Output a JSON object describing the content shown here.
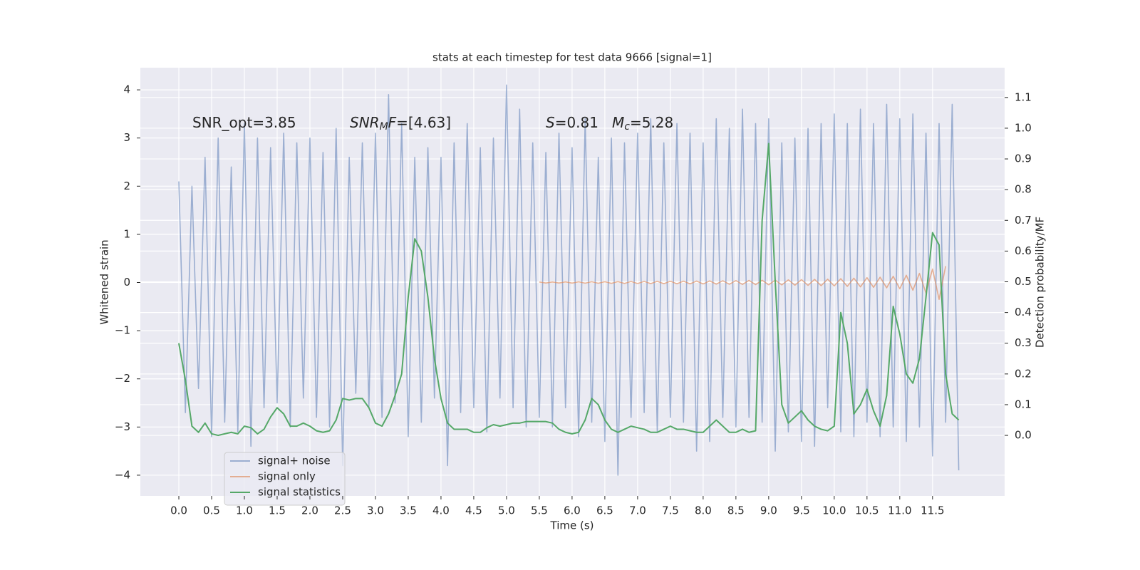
{
  "chart_data": {
    "type": "line",
    "title": "stats at each timestep for test data 9666 [signal=1]",
    "x_label": "Time (s)",
    "y_label": "Whitened strain",
    "y2_label": "Detection probability/MF",
    "annotations": [
      [
        {
          "text": "SNR_opt=3.85",
          "style": "normal"
        }
      ],
      [
        {
          "text": "SNR",
          "style": "italic"
        },
        {
          "text": "M",
          "style": "italic-sub"
        },
        {
          "text": "F",
          "style": "italic"
        },
        {
          "text": "=[4.63]",
          "style": "normal"
        }
      ],
      [
        {
          "text": "S",
          "style": "italic"
        },
        {
          "text": "=0.81",
          "style": "normal"
        }
      ],
      [
        {
          "text": "M",
          "style": "italic"
        },
        {
          "text": "c",
          "style": "italic-sub"
        },
        {
          "text": "=5.28",
          "style": "normal"
        }
      ]
    ],
    "xlim": [
      -0.587,
      12.6
    ],
    "ylim": [
      -4.43,
      4.46
    ],
    "y2lim": [
      -0.197,
      1.197
    ],
    "xticks": [
      {
        "value": 0,
        "label": "0.0"
      },
      0.5,
      {
        "value": 1,
        "label": "1.0"
      },
      1.5,
      {
        "value": 2,
        "label": "2.0"
      },
      2.5,
      {
        "value": 3,
        "label": "3.0"
      },
      3.5,
      {
        "value": 4,
        "label": "4.0"
      },
      4.5,
      {
        "value": 5,
        "label": "5.0"
      },
      5.5,
      {
        "value": 6,
        "label": "6.0"
      },
      6.5,
      {
        "value": 7,
        "label": "7.0"
      },
      7.5,
      {
        "value": 8,
        "label": "8.0"
      },
      8.5,
      {
        "value": 9,
        "label": "9.0"
      },
      9.5,
      {
        "value": 10,
        "label": "10.0"
      },
      10.5,
      {
        "value": 11,
        "label": "11.0"
      },
      11.5
    ],
    "yticks": [
      {
        "value": -4,
        "label": "−4"
      },
      {
        "value": -3,
        "label": "−3"
      },
      {
        "value": -2,
        "label": "−2"
      },
      {
        "value": -1,
        "label": "−1"
      },
      0,
      1,
      2,
      3,
      4
    ],
    "y2ticks": [
      {
        "value": 0,
        "label": "0.0"
      },
      0.1,
      0.2,
      0.3,
      0.4,
      0.5,
      0.6,
      0.7,
      0.8,
      0.9,
      {
        "value": 1,
        "label": "1.0"
      },
      1.1
    ],
    "grid": true,
    "legend": "lower left",
    "x": [
      0,
      0.1,
      0.2,
      0.3,
      0.4,
      0.5,
      0.6,
      0.7,
      0.8,
      0.9,
      1,
      1.1,
      1.2,
      1.3,
      1.4,
      1.5,
      1.6,
      1.7,
      1.8,
      1.9,
      2,
      2.1,
      2.2,
      2.3,
      2.4,
      2.5,
      2.6,
      2.7,
      2.8,
      2.9,
      3,
      3.1,
      3.2,
      3.3,
      3.4,
      3.5,
      3.6,
      3.7,
      3.8,
      3.9,
      4,
      4.1,
      4.2,
      4.3,
      4.4,
      4.5,
      4.6,
      4.7,
      4.8,
      4.9,
      5,
      5.1,
      5.2,
      5.3,
      5.4,
      5.5,
      5.6,
      5.7,
      5.8,
      5.9,
      6,
      6.1,
      6.2,
      6.3,
      6.4,
      6.5,
      6.6,
      6.7,
      6.8,
      6.9,
      7,
      7.1,
      7.2,
      7.3,
      7.4,
      7.5,
      7.6,
      7.7,
      7.8,
      7.9,
      8,
      8.1,
      8.2,
      8.3,
      8.4,
      8.5,
      8.6,
      8.7,
      8.8,
      8.9,
      9,
      9.1,
      9.2,
      9.3,
      9.4,
      9.5,
      9.6,
      9.7,
      9.8,
      9.9,
      10,
      10.1,
      10.2,
      10.3,
      10.4,
      10.5,
      10.6,
      10.7,
      10.8,
      10.9,
      11,
      11.1,
      11.2,
      11.3,
      11.4,
      11.5,
      11.6,
      11.7,
      11.8,
      11.9
    ],
    "series": [
      {
        "name": "signal+ noise",
        "color": "#4c72b0",
        "opacity": 0.5,
        "values": [
          2.1,
          -2.7,
          2.0,
          -2.2,
          2.6,
          -3.2,
          3.0,
          -2.9,
          2.4,
          -3.1,
          3.3,
          -3.4,
          3.0,
          -2.6,
          2.8,
          -2.5,
          3.1,
          -3.0,
          2.9,
          -2.4,
          3.0,
          -2.8,
          2.7,
          -3.0,
          3.2,
          -3.8,
          2.6,
          -2.3,
          2.9,
          -2.6,
          3.1,
          -2.8,
          3.9,
          -2.5,
          3.3,
          -3.2,
          2.6,
          -2.9,
          2.8,
          -2.4,
          2.6,
          -3.8,
          2.9,
          -2.7,
          3.3,
          -2.6,
          2.8,
          -3.1,
          3.0,
          -2.4,
          4.1,
          -2.6,
          3.6,
          -3.0,
          2.9,
          -2.8,
          2.7,
          -3.0,
          3.1,
          -2.6,
          2.8,
          -3.2,
          3.4,
          -2.9,
          2.6,
          -3.3,
          3.0,
          -4.0,
          2.9,
          -2.8,
          3.1,
          -2.7,
          3.4,
          -3.1,
          2.9,
          -2.8,
          3.3,
          -2.9,
          3.1,
          -3.5,
          2.9,
          -3.3,
          3.4,
          -2.8,
          3.2,
          -3.0,
          3.6,
          -2.8,
          3.3,
          -2.9,
          3.4,
          -3.5,
          2.9,
          -3.1,
          3.0,
          -3.3,
          3.2,
          -3.4,
          3.3,
          -2.6,
          3.5,
          -3.1,
          3.3,
          -3.2,
          3.6,
          -2.9,
          3.3,
          -3.2,
          3.7,
          -3.0,
          3.4,
          -3.3,
          3.5,
          -3.0,
          3.1,
          -3.6,
          3.3,
          -2.9,
          3.7,
          -3.9
        ]
      },
      {
        "name": "signal only",
        "color": "#dd8452",
        "opacity": 0.6,
        "values": [
          null,
          null,
          null,
          null,
          null,
          null,
          null,
          null,
          null,
          null,
          null,
          null,
          null,
          null,
          null,
          null,
          null,
          null,
          null,
          null,
          null,
          null,
          null,
          null,
          null,
          null,
          null,
          null,
          null,
          null,
          null,
          null,
          null,
          null,
          null,
          null,
          null,
          null,
          null,
          null,
          null,
          null,
          null,
          null,
          null,
          null,
          null,
          null,
          null,
          null,
          null,
          null,
          null,
          null,
          null,
          0.01,
          -0.01,
          0.01,
          -0.01,
          0.012,
          -0.012,
          0.013,
          -0.013,
          0.015,
          -0.015,
          0.016,
          -0.016,
          0.018,
          -0.018,
          0.02,
          -0.02,
          0.022,
          -0.022,
          0.024,
          -0.024,
          0.026,
          -0.026,
          0.028,
          -0.028,
          0.03,
          -0.03,
          0.033,
          -0.033,
          0.036,
          -0.036,
          0.04,
          -0.04,
          0.043,
          -0.043,
          0.047,
          -0.047,
          0.05,
          -0.05,
          0.055,
          -0.055,
          0.06,
          -0.06,
          0.065,
          -0.065,
          0.07,
          -0.07,
          0.08,
          -0.08,
          0.09,
          -0.09,
          0.1,
          -0.1,
          0.11,
          -0.11,
          0.13,
          -0.13,
          0.15,
          -0.16,
          0.19,
          -0.22,
          0.28,
          -0.35,
          0.34,
          null,
          null
        ]
      },
      {
        "name": "signal statistics",
        "color": "#55a868",
        "opacity": 1,
        "axis": "y2",
        "values": [
          0.3,
          0.18,
          0.03,
          0.01,
          0.04,
          0.005,
          0.0,
          0.005,
          0.01,
          0.005,
          0.03,
          0.025,
          0.005,
          0.02,
          0.06,
          0.09,
          0.07,
          0.03,
          0.03,
          0.04,
          0.03,
          0.015,
          0.01,
          0.015,
          0.05,
          0.12,
          0.115,
          0.12,
          0.12,
          0.09,
          0.04,
          0.03,
          0.07,
          0.13,
          0.2,
          0.45,
          0.64,
          0.6,
          0.45,
          0.25,
          0.12,
          0.04,
          0.02,
          0.02,
          0.02,
          0.01,
          0.01,
          0.025,
          0.035,
          0.03,
          0.035,
          0.04,
          0.04,
          0.045,
          0.045,
          0.045,
          0.045,
          0.04,
          0.02,
          0.01,
          0.005,
          0.01,
          0.05,
          0.12,
          0.1,
          0.05,
          0.02,
          0.01,
          0.02,
          0.03,
          0.025,
          0.02,
          0.01,
          0.01,
          0.02,
          0.03,
          0.02,
          0.02,
          0.015,
          0.01,
          0.01,
          0.03,
          0.05,
          0.03,
          0.01,
          0.01,
          0.02,
          0.01,
          0.015,
          0.7,
          0.95,
          0.5,
          0.1,
          0.04,
          0.06,
          0.08,
          0.05,
          0.03,
          0.02,
          0.015,
          0.03,
          0.4,
          0.3,
          0.07,
          0.1,
          0.15,
          0.08,
          0.03,
          0.13,
          0.42,
          0.33,
          0.2,
          0.17,
          0.25,
          0.45,
          0.66,
          0.62,
          0.2,
          0.07,
          0.05
        ]
      }
    ]
  }
}
